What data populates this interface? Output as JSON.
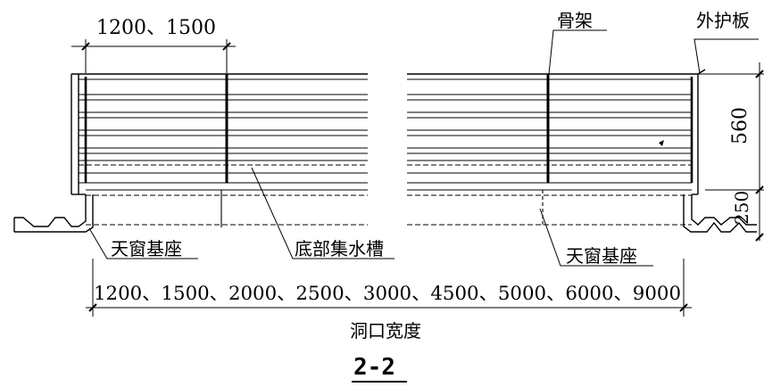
{
  "labels": {
    "top_dimension": "1200、1500",
    "frame": "骨架",
    "outer_panel": "外护板",
    "height_upper": "560",
    "height_lower": "250",
    "base_left": "天窗基座",
    "drain_trough": "底部集水槽",
    "base_right": "天窗基座",
    "width_options": "1200、1500、2000、2500、3000、4500、5000、6000、9000",
    "opening_width": "洞口宽度",
    "section_title": "2-2"
  },
  "colors": {
    "line": "#000000",
    "background": "#ffffff"
  }
}
